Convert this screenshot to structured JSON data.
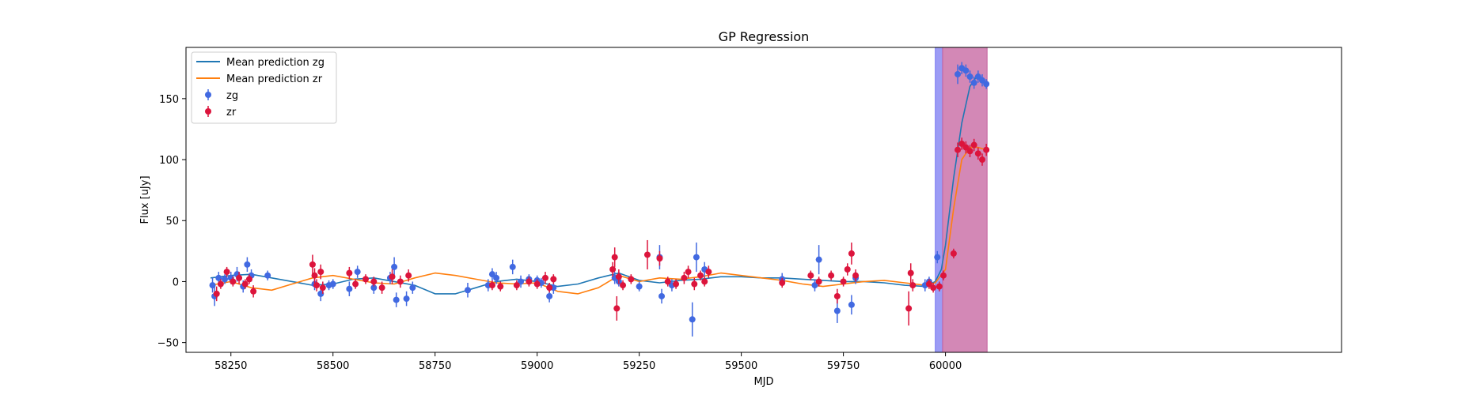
{
  "chart_data": {
    "type": "scatter",
    "title": "GP Regression",
    "xlabel": "MJD",
    "ylabel": "Flux [uJy]",
    "xlim": [
      58140,
      60970
    ],
    "ylim": [
      -58,
      192
    ],
    "x_ticks": [
      58250,
      58500,
      58750,
      59000,
      59250,
      59500,
      59750,
      60000
    ],
    "y_ticks": [
      -50,
      0,
      50,
      100,
      150
    ],
    "grid": false,
    "legend_position": "top-left",
    "shaded_regions": [
      {
        "x0": 59975,
        "x1": 59993,
        "color": "#7b7bf2"
      },
      {
        "x0": 59993,
        "x1": 60102,
        "color": "#c4609e"
      }
    ],
    "series": [
      {
        "name": "Mean prediction zg",
        "kind": "line",
        "color": "#1f77b4",
        "x": [
          58200,
          58250,
          58300,
          58350,
          58400,
          58450,
          58500,
          58550,
          58600,
          58650,
          58700,
          58750,
          58800,
          58850,
          58900,
          58950,
          59000,
          59050,
          59100,
          59150,
          59200,
          59250,
          59300,
          59350,
          59400,
          59450,
          59500,
          59550,
          59600,
          59650,
          59700,
          59750,
          59800,
          59850,
          59900,
          59950,
          59975,
          59990,
          60000,
          60020,
          60040,
          60060,
          60080,
          60100
        ],
        "y": [
          3,
          5,
          6,
          3,
          0,
          -3,
          -2,
          2,
          3,
          0,
          -3,
          -10,
          -10,
          -5,
          0,
          2,
          0,
          -4,
          -2,
          3,
          7,
          1,
          -1,
          1,
          2,
          4,
          4,
          3,
          3,
          2,
          1,
          0,
          0,
          -1,
          -3,
          -4,
          0,
          10,
          30,
          85,
          130,
          160,
          170,
          162
        ]
      },
      {
        "name": "Mean prediction zr",
        "kind": "line",
        "color": "#ff7f0e",
        "x": [
          58200,
          58250,
          58300,
          58350,
          58400,
          58450,
          58500,
          58550,
          58600,
          58650,
          58700,
          58750,
          58800,
          58850,
          58900,
          58950,
          59000,
          59050,
          59100,
          59150,
          59200,
          59250,
          59300,
          59350,
          59400,
          59450,
          59500,
          59550,
          59600,
          59650,
          59700,
          59750,
          59800,
          59850,
          59900,
          59950,
          59975,
          60000,
          60020,
          60040,
          60060,
          60080,
          60100
        ],
        "y": [
          -3,
          0,
          -5,
          -7,
          -2,
          3,
          5,
          2,
          -1,
          -2,
          3,
          7,
          5,
          2,
          -1,
          -2,
          -1,
          -8,
          -10,
          -5,
          5,
          0,
          3,
          2,
          4,
          7,
          5,
          3,
          1,
          -2,
          -4,
          -2,
          0,
          1,
          -1,
          -3,
          -1,
          10,
          60,
          100,
          110,
          110,
          108
        ]
      },
      {
        "name": "zg",
        "kind": "errorbar",
        "color": "#4169e1",
        "x": [
          58205,
          58210,
          58220,
          58235,
          58250,
          58265,
          58280,
          58290,
          58300,
          58340,
          58455,
          58470,
          58490,
          58500,
          58540,
          58560,
          58600,
          58640,
          58650,
          58655,
          58680,
          58695,
          58830,
          58880,
          58890,
          58900,
          58940,
          58960,
          58980,
          59000,
          59010,
          59030,
          59040,
          59190,
          59200,
          59250,
          59300,
          59305,
          59330,
          59380,
          59390,
          59410,
          59600,
          59680,
          59690,
          59735,
          59770,
          59780,
          59950,
          59960,
          59980,
          60030,
          60040,
          60050,
          60060,
          60070,
          60080,
          60090,
          60100
        ],
        "y": [
          -3,
          -12,
          3,
          2,
          3,
          6,
          -4,
          14,
          5,
          5,
          -2,
          -10,
          -3,
          -2,
          -6,
          8,
          -5,
          3,
          12,
          -15,
          -14,
          -5,
          -7,
          -3,
          6,
          3,
          12,
          0,
          2,
          1,
          -1,
          -12,
          -5,
          3,
          0,
          -4,
          20,
          -12,
          -3,
          -31,
          20,
          10,
          2,
          -3,
          18,
          -24,
          -19,
          3,
          -3,
          0,
          20,
          170,
          175,
          173,
          168,
          163,
          168,
          165,
          162
        ],
        "yerr": [
          6,
          8,
          5,
          4,
          5,
          6,
          5,
          6,
          5,
          4,
          5,
          6,
          4,
          4,
          6,
          5,
          5,
          5,
          8,
          6,
          6,
          5,
          6,
          5,
          5,
          5,
          6,
          5,
          4,
          4,
          4,
          5,
          5,
          5,
          4,
          4,
          10,
          6,
          5,
          14,
          12,
          6,
          5,
          5,
          12,
          10,
          8,
          5,
          5,
          4,
          5,
          8,
          5,
          5,
          5,
          5,
          5,
          5,
          4
        ]
      },
      {
        "name": "zr",
        "kind": "errorbar",
        "color": "#dc143c",
        "x": [
          58215,
          58225,
          58240,
          58255,
          58270,
          58285,
          58295,
          58305,
          58450,
          58455,
          58460,
          58470,
          58475,
          58540,
          58555,
          58580,
          58600,
          58620,
          58645,
          58665,
          58685,
          58890,
          58910,
          58950,
          58980,
          59000,
          59020,
          59030,
          59040,
          59185,
          59190,
          59195,
          59200,
          59210,
          59230,
          59270,
          59300,
          59320,
          59340,
          59360,
          59370,
          59385,
          59400,
          59410,
          59420,
          59600,
          59670,
          59690,
          59720,
          59735,
          59750,
          59760,
          59770,
          59780,
          59910,
          59915,
          59920,
          59960,
          59970,
          59985,
          59995,
          60020,
          60030,
          60040,
          60050,
          60060,
          60070,
          60080,
          60090,
          60100
        ],
        "y": [
          -10,
          -2,
          8,
          0,
          3,
          -2,
          2,
          -8,
          14,
          5,
          -3,
          8,
          -5,
          7,
          -2,
          2,
          0,
          -5,
          4,
          0,
          5,
          -3,
          -4,
          -3,
          0,
          -2,
          3,
          -5,
          2,
          10,
          20,
          -22,
          4,
          -3,
          2,
          22,
          19,
          0,
          -2,
          3,
          8,
          -2,
          5,
          0,
          8,
          -1,
          5,
          0,
          5,
          -12,
          0,
          10,
          23,
          5,
          -22,
          7,
          -3,
          -2,
          -5,
          -4,
          5,
          23,
          108,
          113,
          110,
          107,
          112,
          105,
          100,
          108
        ],
        "yerr": [
          6,
          4,
          4,
          4,
          5,
          4,
          4,
          5,
          8,
          6,
          5,
          6,
          5,
          5,
          4,
          4,
          4,
          5,
          6,
          5,
          5,
          4,
          4,
          4,
          4,
          4,
          5,
          4,
          4,
          6,
          8,
          10,
          6,
          4,
          4,
          12,
          6,
          4,
          4,
          5,
          5,
          5,
          4,
          4,
          5,
          4,
          4,
          4,
          4,
          6,
          4,
          5,
          9,
          5,
          14,
          8,
          5,
          4,
          4,
          4,
          4,
          4,
          6,
          5,
          5,
          5,
          5,
          5,
          5,
          5
        ]
      }
    ]
  }
}
